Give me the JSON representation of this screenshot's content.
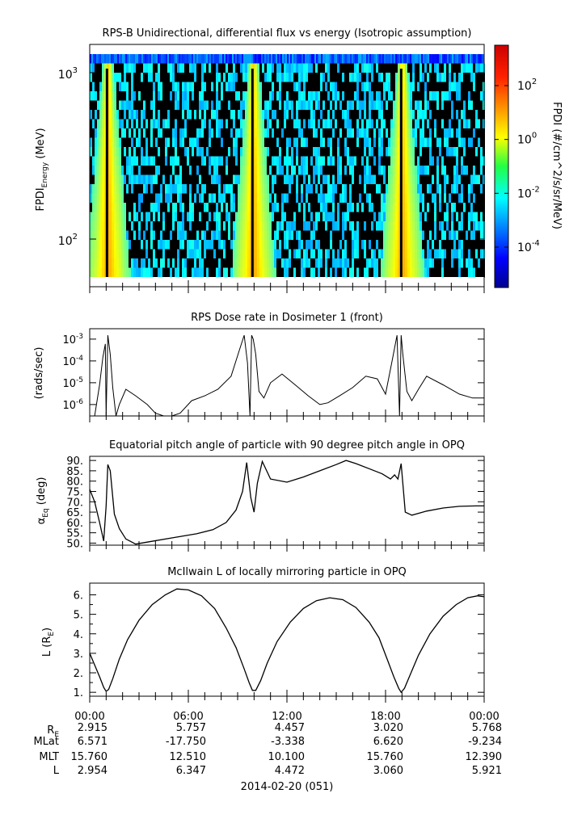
{
  "panels": {
    "spectrogram": {
      "title": "RPS-B  Unidirectional, differential flux vs energy (Isotropic assumption)",
      "ylabel_main": "FPDI",
      "ylabel_sub": "Energy",
      "ylabel_unit": " (MeV)",
      "colorbar_label": "FPDI (#/cm^2/s/sr/MeV)",
      "colorbar_ticks": [
        "10",
        "10",
        "10",
        "10"
      ],
      "colorbar_tick_exponents": [
        "2",
        "0",
        "-2",
        "-4"
      ],
      "colorbar_tick_log": [
        2,
        0,
        -2,
        -4
      ],
      "colorbar_range_log": [
        -5.5,
        3.5
      ],
      "ytick_base": [
        "10",
        "10"
      ],
      "ytick_exponents": [
        "3",
        "2"
      ]
    },
    "dose": {
      "title": "RPS  Dose rate in Dosimeter 1 (front)",
      "ylabel": "(rads/sec)",
      "ytick_base": [
        "10",
        "10",
        "10",
        "10"
      ],
      "ytick_exponents": [
        "-3",
        "-4",
        "-5",
        "-6"
      ]
    },
    "pitch": {
      "title": "Equatorial pitch angle of particle with 90 degree pitch angle in OPQ",
      "ylabel_main": "α",
      "ylabel_sub": "Eq",
      "ylabel_unit": " (deg)",
      "yticks": [
        "90.",
        "85.",
        "80.",
        "75.",
        "70.",
        "65.",
        "60.",
        "55.",
        "50."
      ]
    },
    "lshell": {
      "title": "McIlwain L of locally mirroring particle in OPQ",
      "ylabel_main": "L (R",
      "ylabel_sub": "E",
      "ylabel_end": ")",
      "yticks": [
        "6.",
        "5.",
        "4.",
        "3.",
        "2.",
        "1."
      ]
    }
  },
  "footer": {
    "row_labels": [
      "R",
      "MLat",
      "MLT",
      "L"
    ],
    "row_label_sub": "E",
    "times": [
      "00:00",
      "06:00",
      "12:00",
      "18:00",
      "00:00"
    ],
    "RE": [
      "2.915",
      "5.757",
      "4.457",
      "3.020",
      "5.768"
    ],
    "MLat": [
      "6.571",
      "-17.750",
      "-3.338",
      "6.620",
      "-9.234"
    ],
    "MLT": [
      "15.760",
      "12.510",
      "10.100",
      "15.760",
      "12.390"
    ],
    "L": [
      "2.954",
      "6.347",
      "4.472",
      "3.060",
      "5.921"
    ],
    "date": "2014-02-20 (051)"
  },
  "chart_data": [
    {
      "type": "heatmap",
      "title": "RPS-B  Unidirectional, differential flux vs energy (Isotropic assumption)",
      "xlabel": "",
      "ylabel": "FPDI Energy (MeV)",
      "x_range_hours": [
        0,
        24
      ],
      "y_range_mev": [
        55,
        1300
      ],
      "y_scale": "log",
      "colorbar_scale": "log",
      "colorbar_range": [
        3e-06,
        3000
      ],
      "high_flux_passes_hours": [
        1.05,
        9.9,
        18.95
      ],
      "note_colors": "black = no data/fill, blue→cyan background, green→yellow near perigee passes"
    },
    {
      "type": "line",
      "title": "RPS  Dose rate in Dosimeter 1 (front)",
      "ylabel": "(rads/sec)",
      "y_scale": "log",
      "ylim": [
        3e-07,
        0.003
      ],
      "x": [
        0.0,
        0.3,
        0.6,
        0.8,
        0.95,
        1.0,
        1.1,
        1.25,
        1.4,
        1.6,
        1.8,
        2.2,
        2.8,
        3.5,
        4.0,
        4.5,
        5.0,
        5.5,
        6.2,
        7.0,
        7.8,
        8.6,
        9.1,
        9.4,
        9.6,
        9.75,
        9.85,
        9.95,
        10.1,
        10.3,
        10.6,
        11.0,
        11.7,
        12.5,
        13.3,
        14.0,
        14.5,
        15.2,
        16.0,
        16.8,
        17.5,
        18.0,
        18.4,
        18.7,
        18.85,
        18.95,
        19.05,
        19.3,
        19.6,
        20.0,
        20.5,
        21.5,
        22.5,
        23.3,
        24.0
      ],
      "y": [
        3e-07,
        3e-07,
        8e-06,
        0.00015,
        0.0006,
        3e-07,
        0.0015,
        0.0002,
        6e-06,
        3e-07,
        1e-06,
        5e-06,
        2.5e-06,
        1e-06,
        4e-07,
        3e-07,
        3e-07,
        4e-07,
        1.5e-06,
        2.5e-06,
        5e-06,
        2e-05,
        0.0003,
        0.0015,
        8e-05,
        3e-07,
        0.0015,
        0.001,
        0.0002,
        4e-06,
        2e-06,
        1e-05,
        2.5e-05,
        8e-06,
        2.5e-06,
        1e-06,
        1.2e-06,
        2.5e-06,
        6e-06,
        2e-05,
        1.5e-05,
        3e-06,
        0.0001,
        0.0015,
        3e-07,
        0.0015,
        0.0002,
        4e-06,
        1.5e-06,
        5e-06,
        2e-05,
        8e-06,
        3e-06,
        2e-06,
        2e-06
      ]
    },
    {
      "type": "line",
      "title": "Equatorial pitch angle of particle with 90 degree pitch angle in OPQ",
      "ylabel": "αEq (deg)",
      "ylim": [
        49,
        92
      ],
      "x": [
        0.0,
        0.3,
        0.6,
        0.85,
        1.0,
        1.1,
        1.25,
        1.5,
        1.8,
        2.2,
        2.8,
        3.5,
        5.0,
        6.5,
        7.5,
        8.3,
        8.9,
        9.3,
        9.55,
        9.8,
        10.0,
        10.2,
        10.5,
        11.0,
        12.0,
        13.0,
        14.0,
        15.0,
        15.6,
        16.2,
        17.0,
        17.8,
        18.3,
        18.55,
        18.75,
        18.95,
        19.2,
        19.6,
        20.5,
        21.5,
        22.5,
        23.5,
        24.0
      ],
      "y": [
        76,
        70,
        60,
        51,
        68,
        88,
        85,
        64,
        57,
        52,
        49.5,
        50.5,
        52.5,
        54.5,
        56.5,
        60,
        66,
        75,
        89,
        72,
        65,
        79,
        89.5,
        81,
        79.5,
        82,
        85,
        88,
        90,
        88.5,
        86,
        83.5,
        81,
        83,
        81,
        88.5,
        65,
        63.5,
        65.5,
        67,
        67.8,
        68,
        68
      ]
    },
    {
      "type": "line",
      "title": "McIlwain L of locally mirroring particle in OPQ",
      "ylabel": "L (RE)",
      "ylim": [
        0.8,
        6.6
      ],
      "x": [
        0.0,
        0.3,
        0.6,
        0.85,
        1.0,
        1.15,
        1.4,
        1.8,
        2.3,
        3.0,
        3.8,
        4.6,
        5.3,
        6.0,
        6.8,
        7.6,
        8.3,
        8.9,
        9.4,
        9.7,
        9.9,
        10.1,
        10.4,
        10.8,
        11.4,
        12.2,
        13.0,
        13.8,
        14.6,
        15.4,
        16.2,
        17.0,
        17.6,
        18.1,
        18.5,
        18.8,
        18.95,
        19.15,
        19.5,
        20.0,
        20.7,
        21.5,
        22.3,
        23.0,
        23.6,
        24.0
      ],
      "y": [
        3.0,
        2.4,
        1.8,
        1.25,
        1.05,
        1.15,
        1.7,
        2.7,
        3.7,
        4.7,
        5.5,
        6.0,
        6.3,
        6.25,
        5.95,
        5.3,
        4.3,
        3.3,
        2.2,
        1.5,
        1.1,
        1.1,
        1.6,
        2.5,
        3.6,
        4.6,
        5.3,
        5.7,
        5.85,
        5.75,
        5.35,
        4.6,
        3.8,
        2.7,
        1.8,
        1.2,
        1.0,
        1.2,
        1.9,
        2.9,
        4.0,
        4.9,
        5.5,
        5.85,
        5.95,
        5.9
      ]
    }
  ]
}
